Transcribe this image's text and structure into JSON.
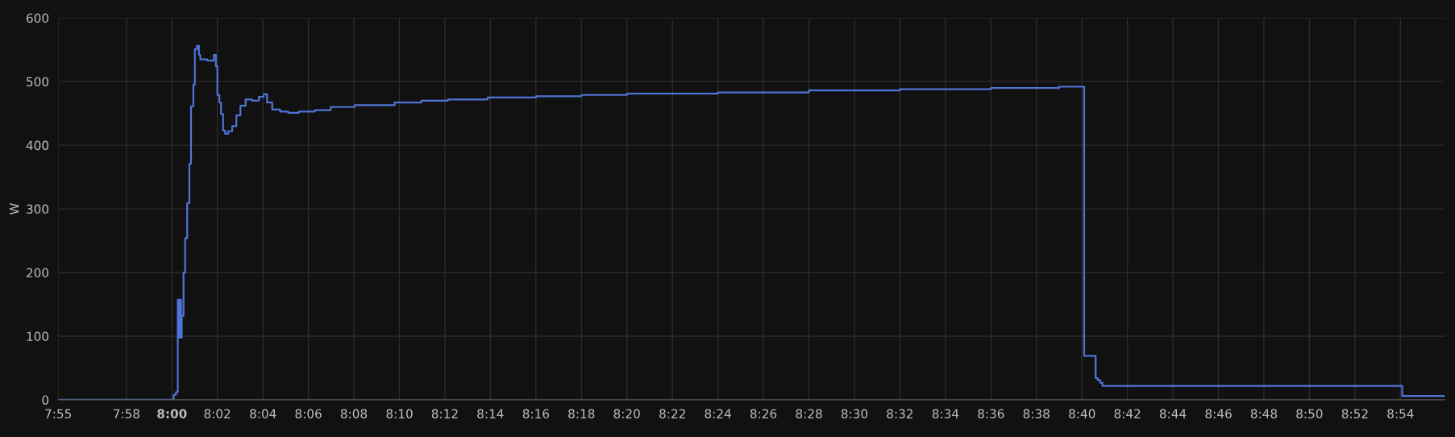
{
  "chart_data": {
    "type": "step",
    "ylabel": "W",
    "grid": true,
    "line_style": "solid",
    "marker": "none",
    "xlim": [
      7.9167,
      8.9325
    ],
    "ylim": [
      0,
      600
    ],
    "yticks": [
      0,
      100,
      200,
      300,
      400,
      500,
      600
    ],
    "xticks": [
      {
        "value": 7.9167,
        "label": "7:55"
      },
      {
        "value": 7.9667,
        "label": "7:58"
      },
      {
        "value": 8,
        "label": "8:00"
      },
      {
        "value": 8.0333,
        "label": "8:02"
      },
      {
        "value": 8.0667,
        "label": "8:04"
      },
      {
        "value": 8.1,
        "label": "8:06"
      },
      {
        "value": 8.1333,
        "label": "8:08"
      },
      {
        "value": 8.1667,
        "label": "8:10"
      },
      {
        "value": 8.2,
        "label": "8:12"
      },
      {
        "value": 8.2333,
        "label": "8:14"
      },
      {
        "value": 8.2667,
        "label": "8:16"
      },
      {
        "value": 8.3,
        "label": "8:18"
      },
      {
        "value": 8.3333,
        "label": "8:20"
      },
      {
        "value": 8.3667,
        "label": "8:22"
      },
      {
        "value": 8.4,
        "label": "8:24"
      },
      {
        "value": 8.4333,
        "label": "8:26"
      },
      {
        "value": 8.4667,
        "label": "8:28"
      },
      {
        "value": 8.5,
        "label": "8:30"
      },
      {
        "value": 8.5333,
        "label": "8:32"
      },
      {
        "value": 8.5667,
        "label": "8:34"
      },
      {
        "value": 8.6,
        "label": "8:36"
      },
      {
        "value": 8.6333,
        "label": "8:38"
      },
      {
        "value": 8.6667,
        "label": "8:40"
      },
      {
        "value": 8.7,
        "label": "8:42"
      },
      {
        "value": 8.7333,
        "label": "8:44"
      },
      {
        "value": 8.7667,
        "label": "8:46"
      },
      {
        "value": 8.8,
        "label": "8:48"
      },
      {
        "value": 8.8333,
        "label": "8:50"
      },
      {
        "value": 8.8667,
        "label": "8:52"
      },
      {
        "value": 8.9,
        "label": "8:54"
      }
    ],
    "series": [
      {
        "color": "#4f74d6",
        "x": [
          7.9167,
          8.0,
          8.0013,
          8.003,
          8.0043,
          8.0053,
          8.0062,
          8.0067,
          8.0072,
          8.0085,
          8.0097,
          8.0112,
          8.0128,
          8.014,
          8.0157,
          8.0168,
          8.0183,
          8.0198,
          8.0208,
          8.0257,
          8.0307,
          8.0322,
          8.0333,
          8.0348,
          8.036,
          8.0375,
          8.039,
          8.0413,
          8.0442,
          8.0472,
          8.0502,
          8.054,
          8.0588,
          8.0637,
          8.0673,
          8.0697,
          8.0735,
          8.0793,
          8.0852,
          8.093,
          8.1047,
          8.1163,
          8.134,
          8.1632,
          8.1827,
          8.2022,
          8.2313,
          8.2667,
          8.3,
          8.3333,
          8.4,
          8.4667,
          8.5333,
          8.6,
          8.65,
          8.6683,
          8.6767,
          8.6783,
          8.68,
          8.6817,
          8.9013,
          8.9325
        ],
        "values": [
          0,
          0,
          8,
          12,
          157,
          98,
          157,
          98,
          132,
          200,
          254,
          309,
          371,
          461,
          495,
          551,
          556,
          542,
          535,
          533,
          542,
          524,
          479,
          467,
          449,
          423,
          418,
          422,
          430,
          447,
          462,
          472,
          470,
          476,
          480,
          467,
          456,
          453,
          451,
          453,
          455,
          460,
          463,
          467,
          470,
          472,
          475,
          477,
          479,
          481,
          483,
          486,
          488,
          490,
          492,
          69,
          34,
          31,
          27,
          22,
          6,
          6
        ]
      }
    ]
  }
}
